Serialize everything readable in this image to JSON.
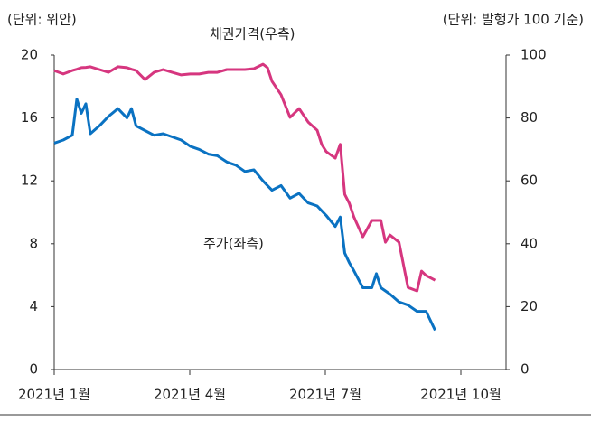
{
  "chart_data": {
    "type": "line",
    "y_unit_label": "(단위: 위안)",
    "y2_unit_label": "(단위: 발행가 100 기준)",
    "x": [
      0,
      0.2,
      0.4,
      0.5,
      0.6,
      0.7,
      0.8,
      1.0,
      1.2,
      1.41,
      1.61,
      1.71,
      1.81,
      2.01,
      2.21,
      2.41,
      2.61,
      2.81,
      3.01,
      3.21,
      3.41,
      3.61,
      3.82,
      4.02,
      4.22,
      4.42,
      4.62,
      4.72,
      4.82,
      5.02,
      5.22,
      5.42,
      5.62,
      5.82,
      5.92,
      6.02,
      6.22,
      6.33,
      6.43,
      6.53,
      6.63,
      6.83,
      7.03,
      7.13,
      7.23,
      7.33,
      7.43,
      7.63,
      7.83,
      8.03,
      8.13,
      8.23,
      8.43
    ],
    "xlim": [
      0,
      10
    ],
    "xticks": [
      {
        "value": 0,
        "label": "2021년 1월"
      },
      {
        "value": 3,
        "label": "2021년 4월"
      },
      {
        "value": 6,
        "label": "2021년 7월"
      },
      {
        "value": 9,
        "label": "2021년 10월"
      }
    ],
    "ylim": [
      0,
      20
    ],
    "yticks": [
      0,
      4,
      8,
      12,
      16,
      20
    ],
    "y2lim": [
      0,
      100
    ],
    "y2ticks": [
      0,
      20,
      40,
      60,
      80,
      100
    ],
    "series": [
      {
        "name": "주가(좌측)",
        "color": "#0a72c2",
        "axis": "y",
        "values": [
          14.4,
          14.6,
          14.9,
          17.2,
          16.3,
          16.9,
          15.0,
          15.5,
          16.1,
          16.6,
          16.0,
          16.6,
          15.5,
          15.2,
          14.9,
          15.0,
          14.8,
          14.6,
          14.2,
          14.0,
          13.7,
          13.6,
          13.2,
          13.0,
          12.6,
          12.7,
          12.0,
          11.7,
          11.4,
          11.7,
          10.9,
          11.2,
          10.6,
          10.4,
          10.1,
          9.8,
          9.1,
          9.7,
          7.4,
          6.8,
          6.3,
          5.2,
          5.2,
          6.1,
          5.2,
          5.0,
          4.8,
          4.3,
          4.1,
          3.7,
          3.7,
          3.7,
          2.5
        ]
      },
      {
        "name": "채권가격(우측)",
        "color": "#d6367f",
        "axis": "y2",
        "values": [
          95.1,
          94.0,
          95.1,
          95.5,
          96.0,
          96.1,
          96.3,
          95.4,
          94.5,
          96.3,
          96.0,
          95.5,
          95.1,
          92.2,
          94.5,
          95.4,
          94.5,
          93.7,
          94.0,
          94.0,
          94.5,
          94.5,
          95.4,
          95.4,
          95.4,
          95.7,
          97.1,
          96.0,
          91.7,
          87.4,
          80.2,
          83.0,
          78.7,
          76.1,
          71.6,
          69.3,
          67.2,
          71.6,
          55.7,
          52.9,
          48.6,
          42.2,
          47.4,
          47.4,
          47.4,
          40.5,
          42.8,
          40.5,
          26.1,
          25.0,
          31.3,
          29.9,
          28.4
        ]
      }
    ]
  }
}
